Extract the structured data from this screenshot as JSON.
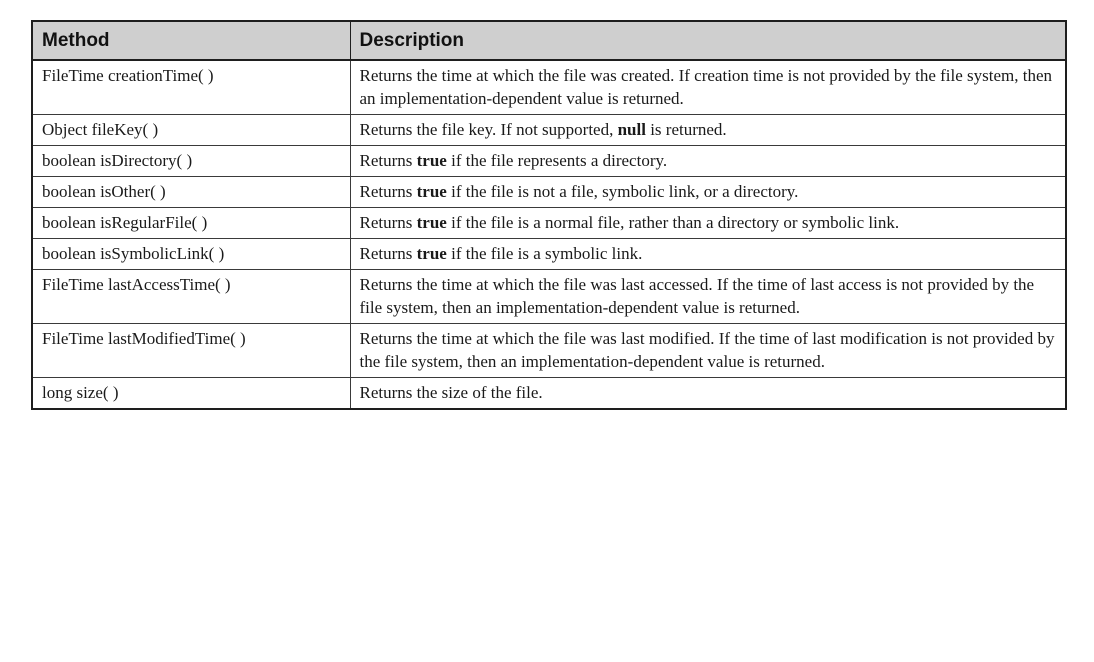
{
  "table": {
    "headers": {
      "method": "Method",
      "description": "Description"
    },
    "rows": [
      {
        "method": "FileTime creationTime( )",
        "description": "Returns the time at which the file was created. If creation time is not provided by the file system, then an implementation-dependent value is returned."
      },
      {
        "method": "Object fileKey( )",
        "desc_before": "Returns the file key. If not supported, ",
        "desc_bold": "null",
        "desc_after": " is returned."
      },
      {
        "method": "boolean isDirectory( )",
        "desc_before": "Returns ",
        "desc_bold": "true",
        "desc_after": " if the file represents a directory."
      },
      {
        "method": "boolean isOther( )",
        "desc_before": "Returns ",
        "desc_bold": "true",
        "desc_after": " if the file is not a file, symbolic link, or a directory."
      },
      {
        "method": "boolean isRegularFile( )",
        "desc_before": "Returns ",
        "desc_bold": "true",
        "desc_after": " if the file is a normal file, rather than a directory or symbolic link."
      },
      {
        "method": "boolean isSymbolicLink( )",
        "desc_before": "Returns ",
        "desc_bold": "true",
        "desc_after": " if the file is a symbolic link."
      },
      {
        "method": "FileTime lastAccessTime( )",
        "description": "Returns the time at which the file was last accessed. If the time of last access is not provided by the file system, then an implementation-dependent value is returned."
      },
      {
        "method": "FileTime lastModifiedTime( )",
        "description": "Returns the time at which the file was last modified. If the time of last modification is not provided by the file system, then an implementation-dependent value is returned."
      },
      {
        "method": "long size( )",
        "description": "Returns the size of the file."
      }
    ]
  }
}
